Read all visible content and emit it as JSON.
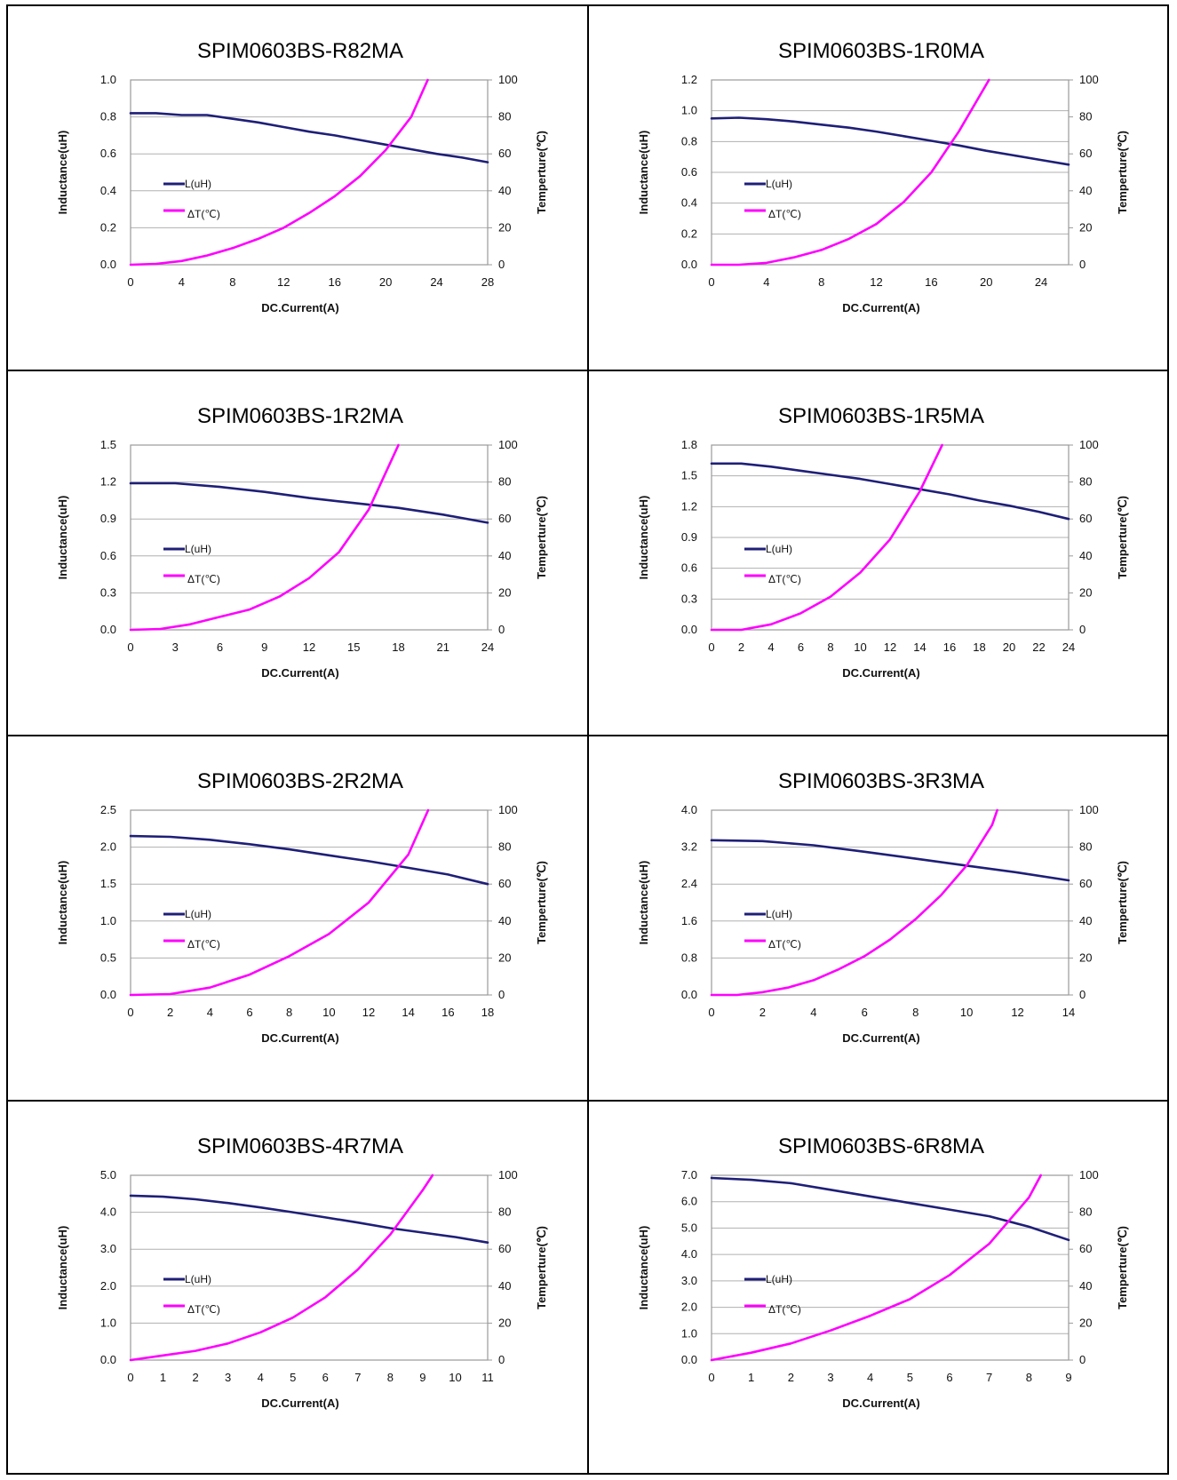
{
  "chart_data": [
    {
      "type": "line",
      "title": "SPIM0603BS-R82MA",
      "xlabel": "DC.Current(A)",
      "ylabel": "Inductance(uH)",
      "y2label": "Temperture(℃)",
      "xlim": [
        0,
        28
      ],
      "xticks": [
        0,
        4,
        8,
        12,
        16,
        20,
        24,
        28
      ],
      "ylim": [
        0,
        1.0
      ],
      "yticks": [
        "0.0",
        "0.2",
        "0.4",
        "0.6",
        "0.8",
        "1.0"
      ],
      "y2lim": [
        0,
        100
      ],
      "y2ticks": [
        "0",
        "20",
        "40",
        "60",
        "80",
        "100"
      ],
      "grid": true,
      "legend_position": "left",
      "series": [
        {
          "name": "L(uH)",
          "axis": "left",
          "color": "#1f1f78",
          "x": [
            0,
            2,
            4,
            6,
            8,
            10,
            12,
            14,
            16,
            18,
            20,
            22,
            24,
            26,
            28
          ],
          "y": [
            0.82,
            0.82,
            0.81,
            0.81,
            0.79,
            0.77,
            0.745,
            0.72,
            0.7,
            0.675,
            0.65,
            0.625,
            0.6,
            0.58,
            0.555
          ]
        },
        {
          "name": "ΔT(℃)",
          "axis": "right",
          "color": "#ff00ff",
          "x": [
            0,
            2,
            4,
            6,
            8,
            10,
            12,
            14,
            16,
            18,
            20,
            22,
            23.3
          ],
          "y": [
            0,
            0.5,
            2,
            5,
            9,
            14,
            20,
            28,
            37,
            48,
            62,
            80,
            100
          ]
        }
      ]
    },
    {
      "type": "line",
      "title": "SPIM0603BS-1R0MA",
      "xlabel": "DC.Current(A)",
      "ylabel": "Inductance(uH)",
      "y2label": "Temperture(℃)",
      "xlim": [
        0,
        26
      ],
      "xticks": [
        0,
        4,
        8,
        12,
        16,
        20,
        24
      ],
      "ylim": [
        0,
        1.2
      ],
      "yticks": [
        "0.0",
        "0.2",
        "0.4",
        "0.6",
        "0.8",
        "1.0",
        "1.2"
      ],
      "y2lim": [
        0,
        100
      ],
      "y2ticks": [
        "0",
        "20",
        "40",
        "60",
        "80",
        "100"
      ],
      "grid": true,
      "legend_position": "left",
      "series": [
        {
          "name": "L(uH)",
          "axis": "left",
          "color": "#1f1f78",
          "x": [
            0,
            2,
            4,
            6,
            8,
            10,
            12,
            14,
            16,
            18,
            20,
            22,
            24,
            26
          ],
          "y": [
            0.95,
            0.955,
            0.945,
            0.93,
            0.91,
            0.89,
            0.865,
            0.835,
            0.805,
            0.775,
            0.74,
            0.71,
            0.68,
            0.65
          ]
        },
        {
          "name": "ΔT(℃)",
          "axis": "right",
          "color": "#ff00ff",
          "x": [
            0,
            2,
            4,
            6,
            8,
            10,
            12,
            14,
            16,
            18,
            20.2
          ],
          "y": [
            0,
            0,
            1,
            4,
            8,
            14,
            22,
            34,
            50,
            72,
            100
          ]
        }
      ]
    },
    {
      "type": "line",
      "title": "SPIM0603BS-1R2MA",
      "xlabel": "DC.Current(A)",
      "ylabel": "Inductance(uH)",
      "y2label": "Temperture(℃)",
      "xlim": [
        0,
        24
      ],
      "xticks": [
        0,
        3,
        6,
        9,
        12,
        15,
        18,
        21,
        24
      ],
      "ylim": [
        0,
        1.5
      ],
      "yticks": [
        "0.0",
        "0.3",
        "0.6",
        "0.9",
        "1.2",
        "1.5"
      ],
      "y2lim": [
        0,
        100
      ],
      "y2ticks": [
        "0",
        "20",
        "40",
        "60",
        "80",
        "100"
      ],
      "grid": true,
      "legend_position": "left",
      "series": [
        {
          "name": "L(uH)",
          "axis": "left",
          "color": "#1f1f78",
          "x": [
            0,
            3,
            6,
            9,
            12,
            15,
            18,
            21,
            24
          ],
          "y": [
            1.19,
            1.19,
            1.16,
            1.12,
            1.07,
            1.03,
            0.99,
            0.935,
            0.87
          ]
        },
        {
          "name": "ΔT(℃)",
          "axis": "right",
          "color": "#ff00ff",
          "x": [
            0,
            2,
            4,
            6,
            8,
            10,
            12,
            14,
            16,
            18
          ],
          "y": [
            0,
            0.5,
            3,
            7,
            11,
            18,
            28,
            42,
            65,
            100
          ]
        }
      ]
    },
    {
      "type": "line",
      "title": "SPIM0603BS-1R5MA",
      "xlabel": "DC.Current(A)",
      "ylabel": "Inductance(uH)",
      "y2label": "Temperture(℃)",
      "xlim": [
        0,
        24
      ],
      "xticks": [
        0,
        2,
        4,
        6,
        8,
        10,
        12,
        14,
        16,
        18,
        20,
        22,
        24
      ],
      "ylim": [
        0,
        1.8
      ],
      "yticks": [
        "0.0",
        "0.3",
        "0.6",
        "0.9",
        "1.2",
        "1.5",
        "1.8"
      ],
      "y2lim": [
        0,
        100
      ],
      "y2ticks": [
        "0",
        "20",
        "40",
        "60",
        "80",
        "100"
      ],
      "grid": true,
      "legend_position": "left",
      "series": [
        {
          "name": "L(uH)",
          "axis": "left",
          "color": "#1f1f78",
          "x": [
            0,
            2,
            4,
            6,
            8,
            10,
            12,
            14,
            16,
            18,
            20,
            22,
            24
          ],
          "y": [
            1.62,
            1.62,
            1.59,
            1.55,
            1.51,
            1.47,
            1.42,
            1.37,
            1.32,
            1.26,
            1.21,
            1.15,
            1.08
          ]
        },
        {
          "name": "ΔT(℃)",
          "axis": "right",
          "color": "#ff00ff",
          "x": [
            0,
            2,
            4,
            6,
            8,
            10,
            12,
            14,
            15.5
          ],
          "y": [
            0,
            0,
            3,
            9,
            18,
            31,
            49,
            75,
            100
          ]
        }
      ]
    },
    {
      "type": "line",
      "title": "SPIM0603BS-2R2MA",
      "xlabel": "DC.Current(A)",
      "ylabel": "Inductance(uH)",
      "y2label": "Temperture(℃)",
      "xlim": [
        0,
        18
      ],
      "xticks": [
        0,
        2,
        4,
        6,
        8,
        10,
        12,
        14,
        16,
        18
      ],
      "ylim": [
        0,
        2.5
      ],
      "yticks": [
        "0.0",
        "0.5",
        "1.0",
        "1.5",
        "2.0",
        "2.5"
      ],
      "y2lim": [
        0,
        100
      ],
      "y2ticks": [
        "0",
        "20",
        "40",
        "60",
        "80",
        "100"
      ],
      "grid": true,
      "legend_position": "left",
      "series": [
        {
          "name": "L(uH)",
          "axis": "left",
          "color": "#1f1f78",
          "x": [
            0,
            2,
            4,
            6,
            8,
            10,
            12,
            14,
            16,
            18
          ],
          "y": [
            2.15,
            2.14,
            2.1,
            2.04,
            1.97,
            1.89,
            1.81,
            1.72,
            1.63,
            1.5
          ]
        },
        {
          "name": "ΔT(℃)",
          "axis": "right",
          "color": "#ff00ff",
          "x": [
            0,
            2,
            4,
            6,
            8,
            10,
            12,
            14,
            15
          ],
          "y": [
            0,
            0.5,
            4,
            11,
            21,
            33,
            50,
            76,
            100
          ]
        }
      ]
    },
    {
      "type": "line",
      "title": "SPIM0603BS-3R3MA",
      "xlabel": "DC.Current(A)",
      "ylabel": "Inductance(uH)",
      "y2label": "Temperture(℃)",
      "xlim": [
        0,
        14
      ],
      "xticks": [
        0,
        2,
        4,
        6,
        8,
        10,
        12,
        14
      ],
      "ylim": [
        0,
        4.0
      ],
      "yticks": [
        "0.0",
        "0.8",
        "1.6",
        "2.4",
        "3.2",
        "4.0"
      ],
      "y2lim": [
        0,
        100
      ],
      "y2ticks": [
        "0",
        "20",
        "40",
        "60",
        "80",
        "100"
      ],
      "grid": true,
      "legend_position": "left",
      "series": [
        {
          "name": "L(uH)",
          "axis": "left",
          "color": "#1f1f78",
          "x": [
            0,
            2,
            4,
            6,
            8,
            10,
            12,
            14
          ],
          "y": [
            3.35,
            3.33,
            3.24,
            3.1,
            2.95,
            2.8,
            2.65,
            2.48
          ]
        },
        {
          "name": "ΔT(℃)",
          "axis": "right",
          "color": "#ff00ff",
          "x": [
            0,
            1,
            2,
            3,
            4,
            5,
            6,
            7,
            8,
            9,
            10,
            11,
            11.2
          ],
          "y": [
            0,
            0,
            1.5,
            4,
            8,
            14,
            21,
            30,
            41,
            54,
            70,
            92,
            100
          ]
        }
      ]
    },
    {
      "type": "line",
      "title": "SPIM0603BS-4R7MA",
      "xlabel": "DC.Current(A)",
      "ylabel": "Inductance(uH)",
      "y2label": "Temperture(℃)",
      "xlim": [
        0,
        11
      ],
      "xticks": [
        0,
        1,
        2,
        3,
        4,
        5,
        6,
        7,
        8,
        9,
        10,
        11
      ],
      "ylim": [
        0,
        5.0
      ],
      "yticks": [
        "0.0",
        "1.0",
        "2.0",
        "3.0",
        "4.0",
        "5.0"
      ],
      "y2lim": [
        0,
        100
      ],
      "y2ticks": [
        "0",
        "20",
        "40",
        "60",
        "80",
        "100"
      ],
      "grid": true,
      "legend_position": "left",
      "series": [
        {
          "name": "L(uH)",
          "axis": "left",
          "color": "#1f1f78",
          "x": [
            0,
            1,
            2,
            3,
            4,
            5,
            6,
            7,
            8,
            9,
            10,
            11
          ],
          "y": [
            4.45,
            4.42,
            4.35,
            4.25,
            4.13,
            4.0,
            3.86,
            3.72,
            3.57,
            3.45,
            3.33,
            3.18
          ]
        },
        {
          "name": "ΔT(℃)",
          "axis": "right",
          "color": "#ff00ff",
          "x": [
            0,
            1,
            2,
            3,
            4,
            5,
            6,
            7,
            8,
            9,
            9.3
          ],
          "y": [
            0,
            2.5,
            5,
            9,
            15,
            23,
            34,
            49,
            68,
            92,
            100
          ]
        }
      ]
    },
    {
      "type": "line",
      "title": "SPIM0603BS-6R8MA",
      "xlabel": "DC.Current(A)",
      "ylabel": "Inductance(uH)",
      "y2label": "Temperture(℃)",
      "xlim": [
        0,
        9
      ],
      "xticks": [
        0,
        1,
        2,
        3,
        4,
        5,
        6,
        7,
        8,
        9
      ],
      "ylim": [
        0,
        7.0
      ],
      "yticks": [
        "0.0",
        "1.0",
        "2.0",
        "3.0",
        "4.0",
        "5.0",
        "6.0",
        "7.0"
      ],
      "y2lim": [
        0,
        100
      ],
      "y2ticks": [
        "0",
        "20",
        "40",
        "60",
        "80",
        "100"
      ],
      "grid": true,
      "legend_position": "left",
      "series": [
        {
          "name": "L(uH)",
          "axis": "left",
          "color": "#1f1f78",
          "x": [
            0,
            1,
            2,
            3,
            4,
            5,
            6,
            7,
            8,
            9
          ],
          "y": [
            6.9,
            6.83,
            6.7,
            6.45,
            6.2,
            5.95,
            5.7,
            5.45,
            5.05,
            4.55
          ]
        },
        {
          "name": "ΔT(℃)",
          "axis": "right",
          "color": "#ff00ff",
          "x": [
            0,
            1,
            2,
            3,
            4,
            5,
            6,
            7,
            8,
            8.3
          ],
          "y": [
            0,
            4,
            9,
            16,
            24,
            33,
            46,
            63,
            88,
            100
          ]
        }
      ]
    }
  ]
}
